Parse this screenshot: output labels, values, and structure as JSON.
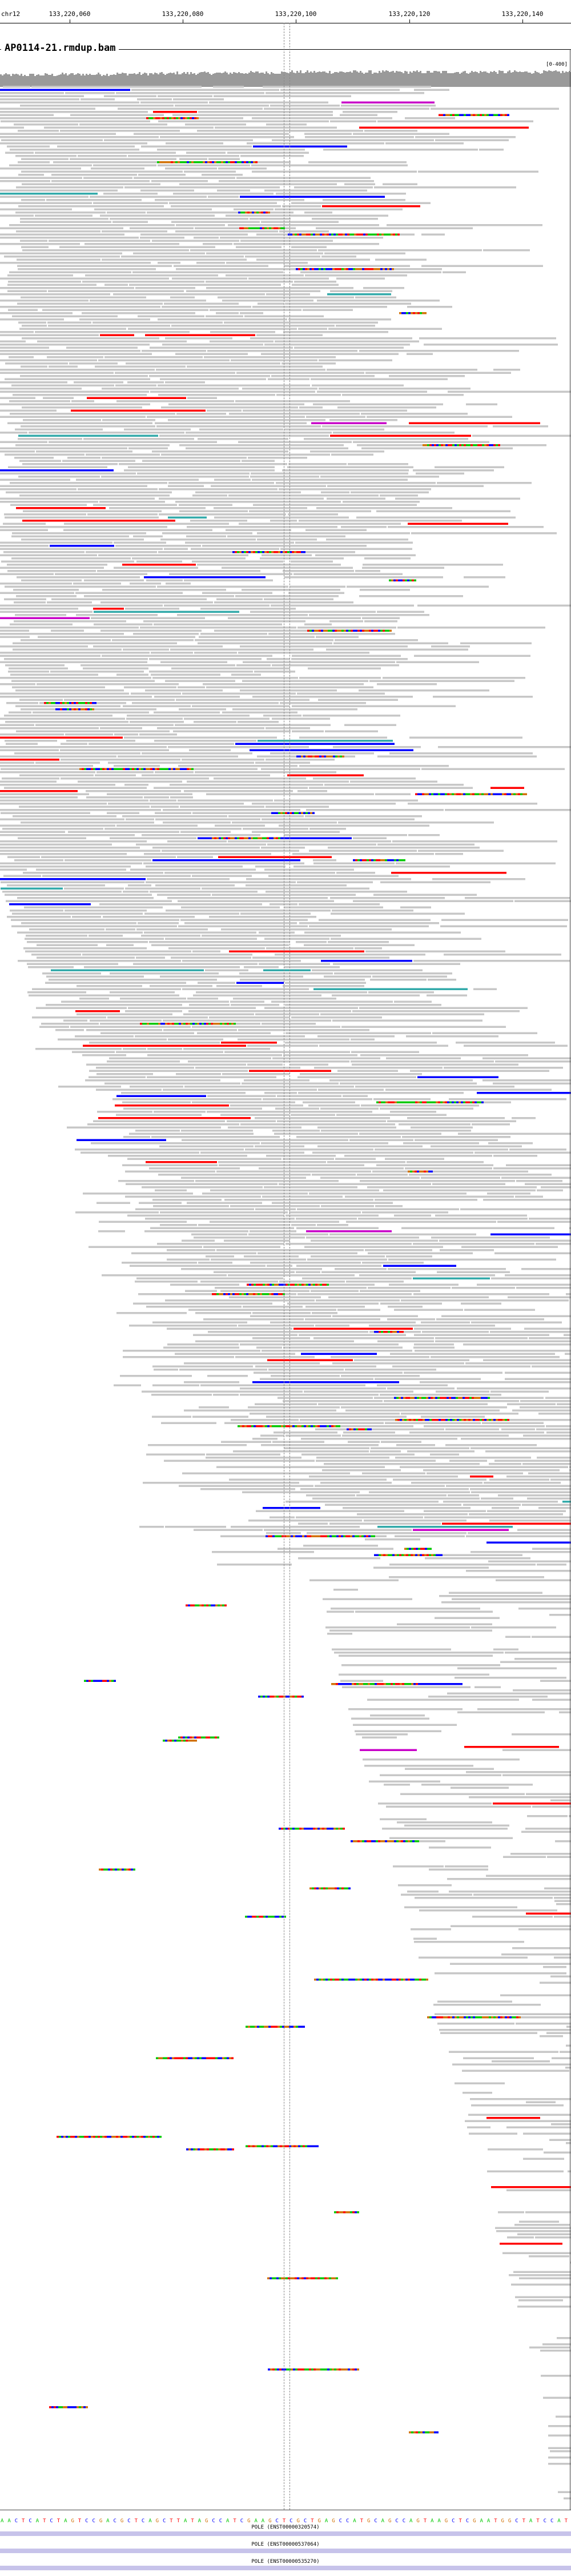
{
  "ruler": {
    "chromosome": "chr12",
    "ticks": [
      {
        "label": "133,220,060"
      },
      {
        "label": "133,220,080"
      },
      {
        "label": "133,220,100"
      },
      {
        "label": "133,220,120"
      },
      {
        "label": "133,220,140"
      }
    ]
  },
  "track": {
    "title": "AP0114-21.rmdup.bam",
    "coverage_scale": "[0-400]"
  },
  "colors": {
    "read": "#c7c7c7",
    "A": "#00c800",
    "C": "#0000ff",
    "G": "#d17105",
    "T": "#ff0000",
    "insert_small": "#0000ff",
    "insert_large": "#ff0000",
    "insert_purple": "#c800c8",
    "insert_teal": "#33aaaa",
    "gene": "#c7c3ea"
  },
  "sequence": "AACTCATCTAGTCCGACGCTCAGCTTATAGCCATCGAAGCTCGCTGAGCCATGCAGCCAGTAAGCTCGAATGGCTATCCAT",
  "genes": [
    {
      "name": "POLE (ENST00000320574)"
    },
    {
      "name": "POLE (ENST00000537064)"
    },
    {
      "name": "POLE (ENST00000535270)"
    }
  ]
}
